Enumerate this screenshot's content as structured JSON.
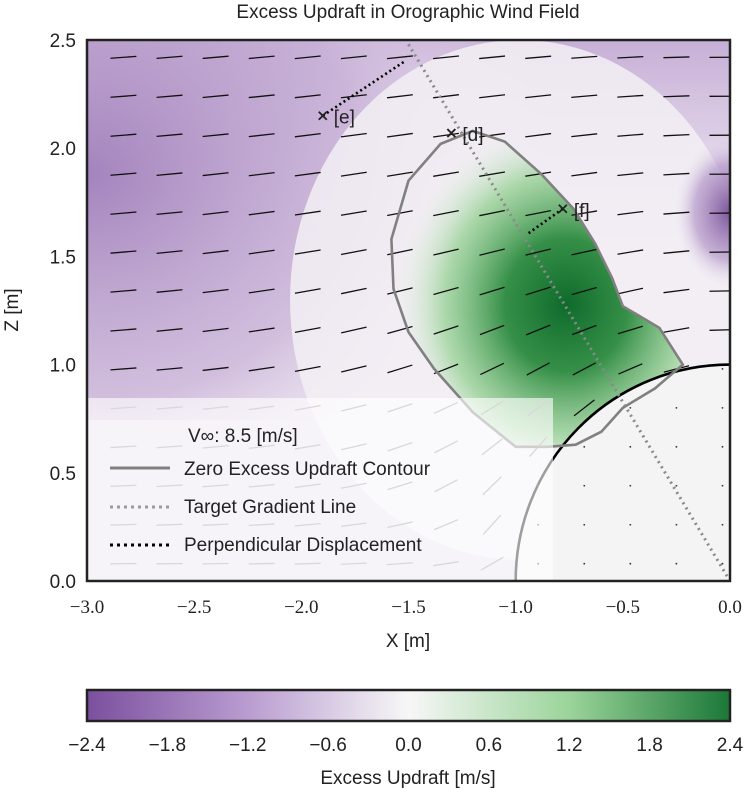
{
  "chart_data": {
    "type": "heatmap",
    "title": "Excess Updraft in Orographic Wind Field",
    "xlabel": "X [m]",
    "ylabel": "Z [m]",
    "xlim": [
      -3.0,
      0.0
    ],
    "ylim": [
      0.0,
      2.5
    ],
    "grid": false,
    "x_ticks": [
      "−3.0",
      "−2.5",
      "−2.0",
      "−1.5",
      "−1.0",
      "−0.5",
      "0.0"
    ],
    "y_ticks": [
      "0.0",
      "0.5",
      "1.0",
      "1.5",
      "2.0",
      "2.5"
    ],
    "hill": {
      "center_x": 0.0,
      "center_z": 0.0,
      "radius": 1.0
    },
    "zero_contour": [
      [
        -1.0,
        0.62
      ],
      [
        -1.2,
        0.78
      ],
      [
        -1.38,
        0.98
      ],
      [
        -1.5,
        1.15
      ],
      [
        -1.57,
        1.35
      ],
      [
        -1.58,
        1.58
      ],
      [
        -1.5,
        1.85
      ],
      [
        -1.35,
        2.02
      ],
      [
        -1.2,
        2.08
      ],
      [
        -1.05,
        2.03
      ],
      [
        -0.88,
        1.88
      ],
      [
        -0.73,
        1.72
      ],
      [
        -0.63,
        1.56
      ],
      [
        -0.55,
        1.4
      ],
      [
        -0.5,
        1.27
      ],
      [
        -0.33,
        1.17
      ],
      [
        -0.22,
        1.0
      ],
      [
        -0.35,
        0.89
      ],
      [
        -0.5,
        0.8
      ],
      [
        -0.6,
        0.69
      ],
      [
        -0.72,
        0.63
      ],
      [
        -0.85,
        0.62
      ],
      [
        -1.0,
        0.62
      ]
    ],
    "target_gradient_line": {
      "from": [
        -1.5,
        2.48
      ],
      "to": [
        0.0,
        0.0
      ]
    },
    "markers": [
      {
        "label": "[e]",
        "x": -1.9,
        "z": 2.15,
        "perp_to": [
          -1.52,
          2.4
        ]
      },
      {
        "label": "[d]",
        "x": -1.3,
        "z": 2.07
      },
      {
        "label": "[f]",
        "x": -0.78,
        "z": 1.72,
        "perp_to": [
          -0.95,
          1.6
        ]
      }
    ],
    "wind_speed_label": "V∞: 8.5 [m/s]",
    "legend": {
      "placement": "bottom-left",
      "entries": [
        "Zero Excess Updraft Contour",
        "Target Gradient Line",
        "Perpendicular Displacement"
      ]
    },
    "colorbar": {
      "label": "Excess Updraft [m/s]",
      "range": [
        -2.4,
        2.4
      ],
      "ticks": [
        "−2.4",
        "−1.8",
        "−1.2",
        "−0.6",
        "0.0",
        "0.6",
        "1.2",
        "1.8",
        "2.4"
      ],
      "colormap": "PRGn",
      "low_color": "#7b4f9e",
      "mid_color": "#f7f7f7",
      "high_color": "#1b7837"
    }
  }
}
